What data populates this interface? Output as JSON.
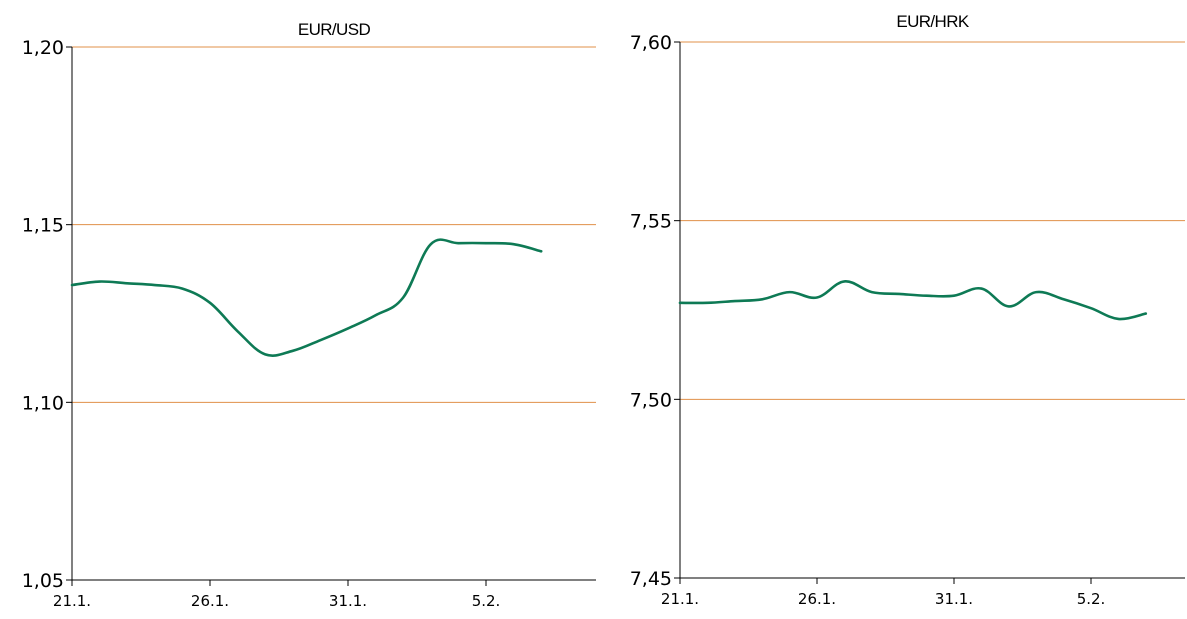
{
  "colors": {
    "line": "#0e7a55",
    "grid": "#e0914a",
    "axis": "#000000"
  },
  "chart_data": [
    {
      "type": "line",
      "title": "EUR/USD",
      "xlabel": "",
      "ylabel": "",
      "ylim": [
        1.05,
        1.2
      ],
      "y_ticks": [
        "1,05",
        "1,10",
        "1,15",
        "1,20"
      ],
      "x_ticks": [
        "21.1.",
        "26.1.",
        "31.1.",
        "5.2."
      ],
      "grid": "horizontal",
      "series": [
        {
          "x": [
            "21.1.",
            "22.1.",
            "23.1.",
            "24.1.",
            "25.1.",
            "26.1.",
            "27.1.",
            "28.1.",
            "29.1.",
            "30.1.",
            "31.1.",
            "1.2.",
            "2.2.",
            "3.2.",
            "4.2.",
            "5.2.",
            "6.2.",
            "7.2."
          ],
          "values": [
            1.133,
            1.134,
            1.1335,
            1.133,
            1.132,
            1.128,
            1.12,
            1.1135,
            1.1145,
            1.1175,
            1.1208,
            1.1245,
            1.1295,
            1.1445,
            1.1448,
            1.1448,
            1.1445,
            1.1425
          ]
        }
      ]
    },
    {
      "type": "line",
      "title": "EUR/HRK",
      "xlabel": "",
      "ylabel": "",
      "ylim": [
        7.45,
        7.6
      ],
      "y_ticks": [
        "7,45",
        "7,50",
        "7,55",
        "7,60"
      ],
      "x_ticks": [
        "21.1.",
        "26.1.",
        "31.1.",
        "5.2."
      ],
      "grid": "horizontal",
      "series": [
        {
          "x": [
            "21.1.",
            "22.1.",
            "23.1.",
            "24.1.",
            "25.1.",
            "26.1.",
            "27.1.",
            "28.1.",
            "29.1.",
            "30.1.",
            "31.1.",
            "1.2.",
            "2.2.",
            "3.2.",
            "4.2.",
            "5.2.",
            "6.2.",
            "7.2."
          ],
          "values": [
            7.527,
            7.527,
            7.5275,
            7.528,
            7.53,
            7.5285,
            7.533,
            7.53,
            7.5295,
            7.529,
            7.529,
            7.531,
            7.526,
            7.53,
            7.528,
            7.5255,
            7.5225,
            7.524
          ]
        }
      ]
    }
  ]
}
